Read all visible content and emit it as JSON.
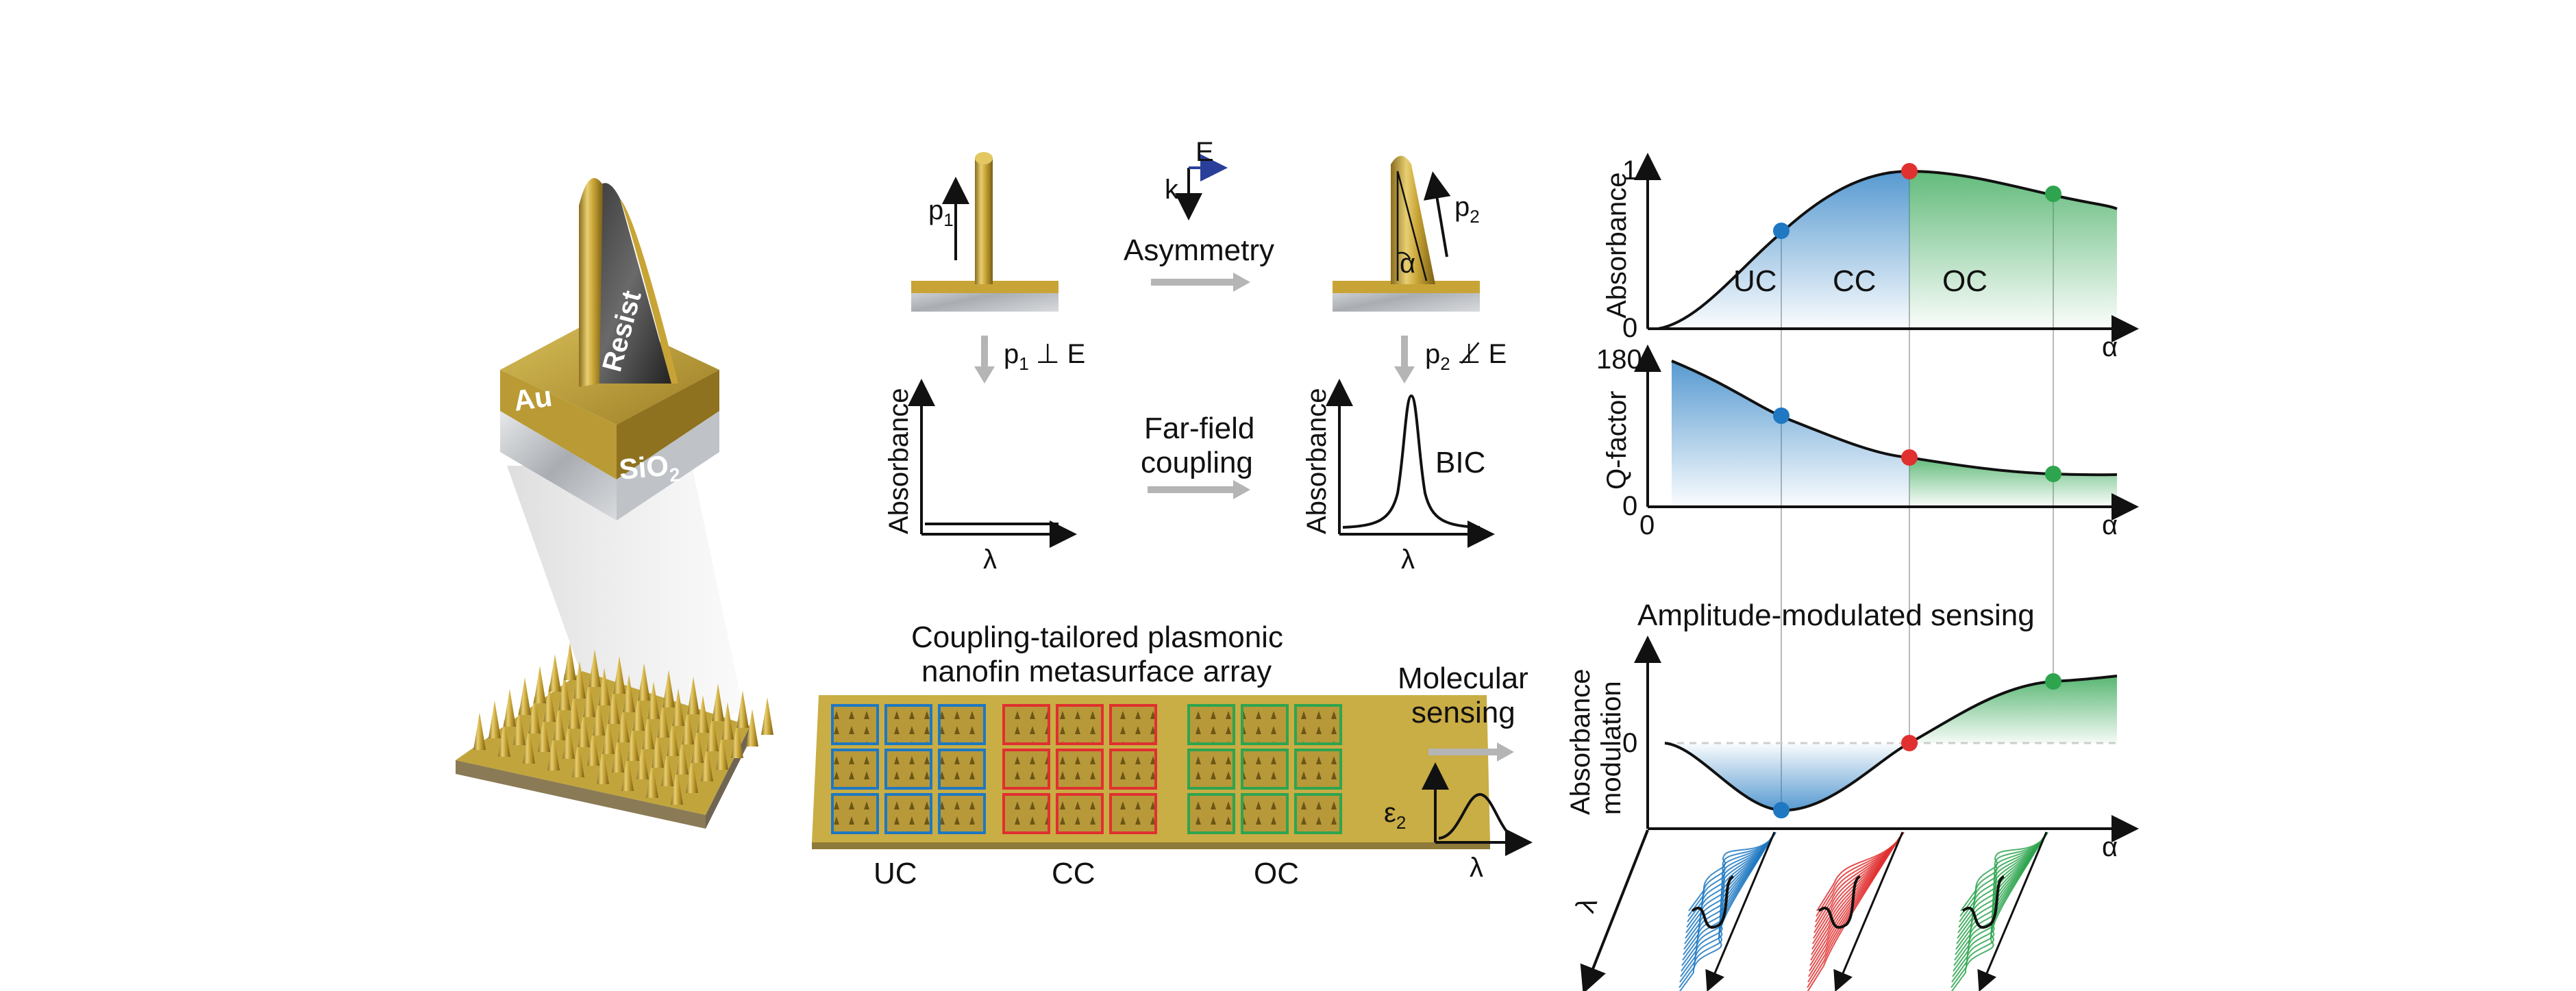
{
  "labels": {
    "au": "Au",
    "resist": "Resist",
    "sio2_main": "SiO",
    "sio2_sub": "2",
    "p1_main": "p",
    "p1_sub": "1",
    "p2_main": "p",
    "p2_sub": "2",
    "k": "k",
    "e": "E",
    "asymmetry": "Asymmetry",
    "alpha": "α",
    "perp_cond": "⊥ E",
    "notperp_cond": "⊥̸ E",
    "absorbance": "Absorbance",
    "lambda": "λ",
    "farfield_line1": "Far-field",
    "farfield_line2": "coupling",
    "bic": "BIC",
    "array_title_line1": "Coupling-tailored plasmonic",
    "array_title_line2": "nanofin metasurface array",
    "uc": "UC",
    "cc": "CC",
    "oc": "OC",
    "molecular_line1": "Molecular",
    "molecular_line2": "sensing",
    "eps_main": "ε",
    "eps_sub": "2",
    "qfactor": "Q-factor",
    "amp_title": "Amplitude-modulated sensing",
    "absmod_line1": "Absorbance",
    "absmod_line2": "modulation",
    "tick_1": "1",
    "tick_0a": "0",
    "tick_180": "180",
    "tick_0b": "0",
    "tick_0c": "0",
    "tick_0d": "0"
  },
  "colors": {
    "uc": "#1f78c1",
    "cc": "#e03030",
    "oc": "#2ea44f",
    "gold": "#c8a436",
    "gold_dark": "#8a6d1e",
    "silver": "#cfd2d6"
  },
  "chart_data": [
    {
      "type": "area",
      "ylabel": "Absorbance",
      "xlabel": "α",
      "yticks": [
        "0",
        "1"
      ],
      "regions": [
        "UC",
        "CC",
        "OC"
      ],
      "markers": [
        {
          "region": "UC",
          "x": 0.3,
          "y": 0.62
        },
        {
          "region": "CC",
          "x": 0.57,
          "y": 1.0
        },
        {
          "region": "OC",
          "x": 0.87,
          "y": 0.86
        }
      ]
    },
    {
      "type": "area",
      "ylabel": "Q-factor",
      "xlabel": "α",
      "yticks": [
        "0",
        "180"
      ],
      "markers": [
        {
          "region": "UC",
          "x": 0.3,
          "y": 102
        },
        {
          "region": "CC",
          "x": 0.57,
          "y": 50
        },
        {
          "region": "OC",
          "x": 0.87,
          "y": 34
        }
      ]
    },
    {
      "type": "area",
      "title": "Amplitude-modulated sensing",
      "ylabel": "Absorbance modulation",
      "xlabel": "α",
      "yticks": [
        "0"
      ],
      "markers": [
        {
          "region": "UC",
          "x": 0.3,
          "y": -1.0
        },
        {
          "region": "CC",
          "x": 0.57,
          "y": 0.0
        },
        {
          "region": "OC",
          "x": 0.87,
          "y": 0.92
        }
      ]
    }
  ]
}
